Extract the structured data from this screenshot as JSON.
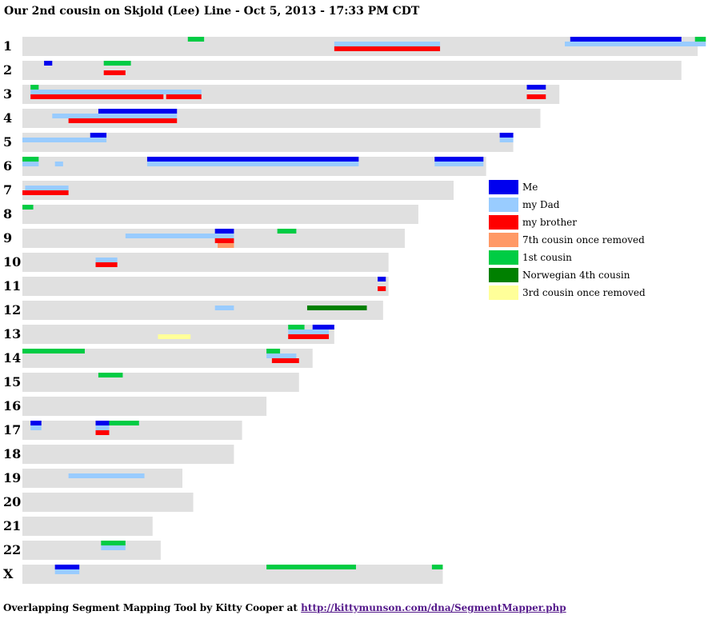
{
  "title": "Our 2nd cousin on Skjold (Lee) Line - Oct 5, 2013 - 17:33 PM CDT",
  "footer": {
    "text": "Overlapping Segment Mapping Tool by Kitty Cooper at",
    "link": "http://kittymunson.com/dna/SegmentMapper.php"
  },
  "chart_data": {
    "type": "segment-map",
    "chromosome_color": "#e0e0e0",
    "people": [
      {
        "name": "Me",
        "color": "#0000ee"
      },
      {
        "name": "my Dad",
        "color": "#99ccff"
      },
      {
        "name": "my brother",
        "color": "#ff0000"
      },
      {
        "name": "7th cousin once removed",
        "color": "#ff9966"
      },
      {
        "name": "1st cousin",
        "color": "#00cc44"
      },
      {
        "name": "Norwegian 4th cousin",
        "color": "#008000"
      },
      {
        "name": "3rd cousin once removed",
        "color": "#ffff99"
      }
    ],
    "chromosomes": [
      {
        "label": "1",
        "length": 249,
        "segments": [
          {
            "p": 4,
            "s": 61,
            "e": 67
          },
          {
            "p": 0,
            "s": 202,
            "e": 243
          },
          {
            "p": 4,
            "s": 248,
            "e": 252
          },
          {
            "p": 1,
            "s": 115,
            "e": 154
          },
          {
            "p": 1,
            "s": 200,
            "e": 252
          },
          {
            "p": 2,
            "s": 115,
            "e": 154
          }
        ]
      },
      {
        "label": "2",
        "length": 243,
        "segments": [
          {
            "p": 0,
            "s": 8,
            "e": 11
          },
          {
            "p": 4,
            "s": 30,
            "e": 40
          },
          {
            "p": 2,
            "s": 30,
            "e": 38
          }
        ]
      },
      {
        "label": "3",
        "length": 198,
        "segments": [
          {
            "p": 4,
            "s": 3,
            "e": 6
          },
          {
            "p": 1,
            "s": 3,
            "e": 66
          },
          {
            "p": 0,
            "s": 186,
            "e": 193
          },
          {
            "p": 2,
            "s": 3,
            "e": 52
          },
          {
            "p": 2,
            "s": 53,
            "e": 66
          },
          {
            "p": 2,
            "s": 186,
            "e": 193
          }
        ]
      },
      {
        "label": "4",
        "length": 191,
        "segments": [
          {
            "p": 0,
            "s": 28,
            "e": 57
          },
          {
            "p": 1,
            "s": 11,
            "e": 57
          },
          {
            "p": 2,
            "s": 17,
            "e": 57
          }
        ]
      },
      {
        "label": "5",
        "length": 181,
        "segments": [
          {
            "p": 0,
            "s": 25,
            "e": 31
          },
          {
            "p": 0,
            "s": 176,
            "e": 181
          },
          {
            "p": 1,
            "s": 0,
            "e": 31
          },
          {
            "p": 1,
            "s": 176,
            "e": 181
          }
        ]
      },
      {
        "label": "6",
        "length": 171,
        "segments": [
          {
            "p": 4,
            "s": 0,
            "e": 6
          },
          {
            "p": 0,
            "s": 46,
            "e": 124
          },
          {
            "p": 0,
            "s": 152,
            "e": 170
          },
          {
            "p": 1,
            "s": 0,
            "e": 6
          },
          {
            "p": 1,
            "s": 12,
            "e": 15
          },
          {
            "p": 1,
            "s": 46,
            "e": 124
          },
          {
            "p": 1,
            "s": 152,
            "e": 170
          }
        ]
      },
      {
        "label": "7",
        "length": 159,
        "segments": [
          {
            "p": 1,
            "s": 1,
            "e": 17
          },
          {
            "p": 2,
            "s": 0,
            "e": 17
          }
        ]
      },
      {
        "label": "8",
        "length": 146,
        "segments": [
          {
            "p": 4,
            "s": 0,
            "e": 4
          }
        ]
      },
      {
        "label": "9",
        "length": 141,
        "segments": [
          {
            "p": 0,
            "s": 71,
            "e": 78
          },
          {
            "p": 4,
            "s": 94,
            "e": 101
          },
          {
            "p": 1,
            "s": 38,
            "e": 78
          },
          {
            "p": 2,
            "s": 71,
            "e": 78
          },
          {
            "p": 3,
            "s": 72,
            "e": 78
          }
        ]
      },
      {
        "label": "10",
        "length": 135,
        "segments": [
          {
            "p": 1,
            "s": 27,
            "e": 35
          },
          {
            "p": 2,
            "s": 27,
            "e": 35
          }
        ]
      },
      {
        "label": "11",
        "length": 135,
        "segments": [
          {
            "p": 0,
            "s": 131,
            "e": 134
          },
          {
            "p": 2,
            "s": 131,
            "e": 134
          }
        ]
      },
      {
        "label": "12",
        "length": 133,
        "segments": [
          {
            "p": 1,
            "s": 71,
            "e": 78
          },
          {
            "p": 5,
            "s": 105,
            "e": 127
          }
        ]
      },
      {
        "label": "13",
        "length": 115,
        "segments": [
          {
            "p": 4,
            "s": 98,
            "e": 104
          },
          {
            "p": 0,
            "s": 107,
            "e": 115
          },
          {
            "p": 1,
            "s": 98,
            "e": 113
          },
          {
            "p": 2,
            "s": 98,
            "e": 113
          },
          {
            "p": 6,
            "s": 50,
            "e": 62
          }
        ]
      },
      {
        "label": "14",
        "length": 107,
        "segments": [
          {
            "p": 4,
            "s": 0,
            "e": 23
          },
          {
            "p": 4,
            "s": 90,
            "e": 95
          },
          {
            "p": 1,
            "s": 90,
            "e": 101
          },
          {
            "p": 2,
            "s": 92,
            "e": 102
          }
        ]
      },
      {
        "label": "15",
        "length": 102,
        "segments": [
          {
            "p": 4,
            "s": 28,
            "e": 37
          }
        ]
      },
      {
        "label": "16",
        "length": 90,
        "segments": []
      },
      {
        "label": "17",
        "length": 81,
        "segments": [
          {
            "p": 0,
            "s": 3,
            "e": 7
          },
          {
            "p": 0,
            "s": 27,
            "e": 32
          },
          {
            "p": 4,
            "s": 32,
            "e": 43
          },
          {
            "p": 1,
            "s": 3,
            "e": 7
          },
          {
            "p": 1,
            "s": 27,
            "e": 32
          },
          {
            "p": 2,
            "s": 27,
            "e": 32
          }
        ]
      },
      {
        "label": "18",
        "length": 78,
        "segments": []
      },
      {
        "label": "19",
        "length": 59,
        "segments": [
          {
            "p": 1,
            "s": 17,
            "e": 45
          }
        ]
      },
      {
        "label": "20",
        "length": 63,
        "segments": []
      },
      {
        "label": "21",
        "length": 48,
        "segments": []
      },
      {
        "label": "22",
        "length": 51,
        "segments": [
          {
            "p": 4,
            "s": 29,
            "e": 38
          },
          {
            "p": 1,
            "s": 29,
            "e": 38
          }
        ]
      },
      {
        "label": "X",
        "length": 155,
        "segments": [
          {
            "p": 0,
            "s": 12,
            "e": 21
          },
          {
            "p": 4,
            "s": 90,
            "e": 123
          },
          {
            "p": 4,
            "s": 151,
            "e": 155
          },
          {
            "p": 1,
            "s": 12,
            "e": 21
          }
        ]
      }
    ]
  }
}
